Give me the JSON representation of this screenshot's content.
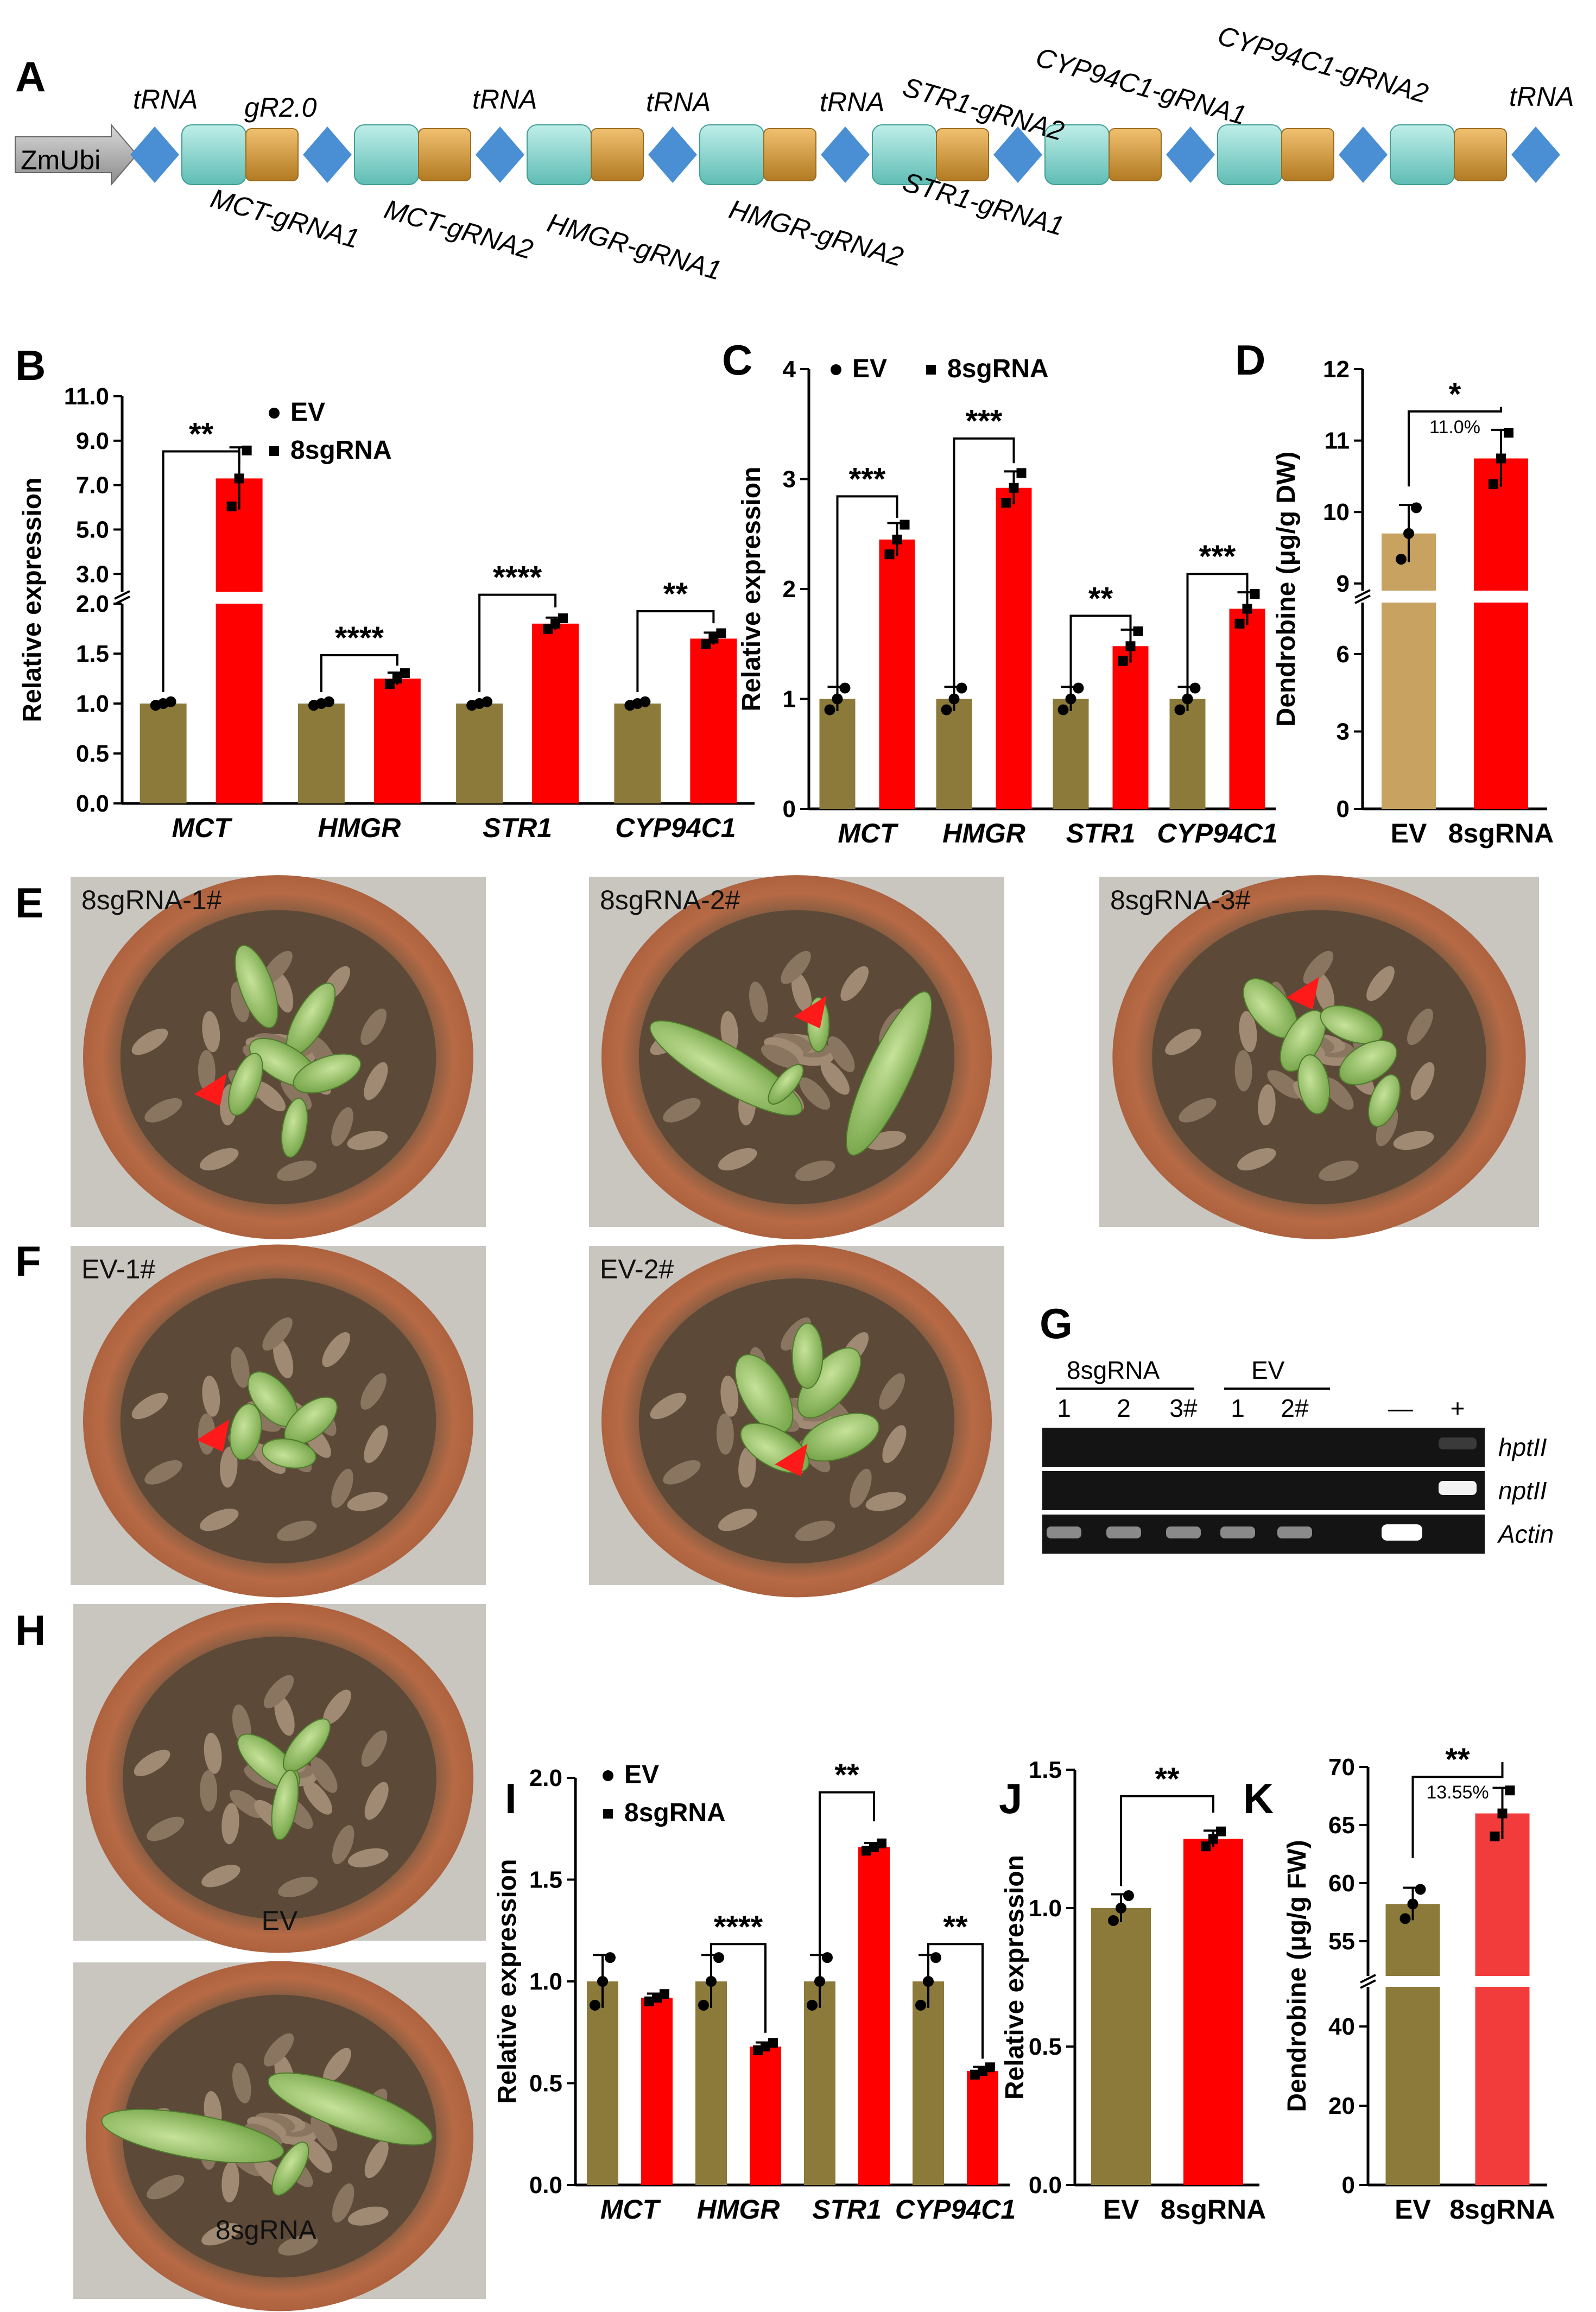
{
  "panel_labels": {
    "A": "A",
    "B": "B",
    "C": "C",
    "D": "D",
    "E": "E",
    "F": "F",
    "G": "G",
    "H": "H",
    "I": "I",
    "J": "J",
    "K": "K"
  },
  "colors": {
    "ev": "#8c7a3a",
    "ev_light": "#c8a260",
    "sgrna": "#ff0000",
    "sgrna_light": "#f23c3c",
    "trna": "#4a8fd4",
    "grna": "#7fd0c8",
    "scaffold": "#d39a36"
  },
  "construct": {
    "promoter": "ZmUbi",
    "top_labels": [
      "tRNA",
      "gR2.0",
      "tRNA",
      "tRNA",
      "tRNA",
      "STR1-gRNA2",
      "CYP94C1-gRNA1",
      "CYP94C1-gRNA2",
      "tRNA"
    ],
    "bottom_labels": [
      "MCT-gRNA1",
      "MCT-gRNA2",
      "HMGR-gRNA1",
      "HMGR-gRNA2",
      "STR1-gRNA1"
    ]
  },
  "legend": {
    "ev": "EV",
    "sgrna": "8sgRNA"
  },
  "photos": {
    "E": [
      "8sgRNA-1#",
      "8sgRNA-2#",
      "8sgRNA-3#"
    ],
    "F": [
      "EV-1#",
      "EV-2#"
    ],
    "H": [
      "EV",
      "8sgRNA"
    ]
  },
  "gel": {
    "group1": "8sgRNA",
    "group2": "EV",
    "lanes": [
      "1",
      "2",
      "3#",
      "1",
      "2#",
      "—",
      "+"
    ],
    "rows": [
      "hptII",
      "nptII",
      "Actin"
    ]
  },
  "chart_data": [
    {
      "panel": "B",
      "type": "bar",
      "ylabel": "Relative expression",
      "broken_axis": true,
      "lower_ticks": [
        "0.0",
        "0.5",
        "1.0",
        "1.5",
        "2.0"
      ],
      "upper_ticks": [
        "3.0",
        "5.0",
        "7.0",
        "9.0",
        "11.0"
      ],
      "categories": [
        "MCT",
        "HMGR",
        "STR1",
        "CYP94C1"
      ],
      "series": [
        {
          "name": "EV",
          "values": [
            1.0,
            1.0,
            1.0,
            1.0
          ]
        },
        {
          "name": "8sgRNA",
          "values": [
            7.3,
            1.25,
            1.8,
            1.65
          ]
        }
      ],
      "significance": [
        "**",
        "****",
        "****",
        "**"
      ]
    },
    {
      "panel": "C",
      "type": "bar",
      "ylabel": "Relative expression",
      "ylim": [
        0,
        4
      ],
      "ticks": [
        "0",
        "1",
        "2",
        "3",
        "4"
      ],
      "categories": [
        "MCT",
        "HMGR",
        "STR1",
        "CYP94C1"
      ],
      "series": [
        {
          "name": "EV",
          "values": [
            1.0,
            1.0,
            1.0,
            1.0
          ]
        },
        {
          "name": "8sgRNA",
          "values": [
            2.45,
            2.92,
            1.48,
            1.82
          ]
        }
      ],
      "significance": [
        "***",
        "***",
        "**",
        "***"
      ]
    },
    {
      "panel": "D",
      "type": "bar",
      "ylabel": "Dendrobine (μg/g DW)",
      "broken_axis": true,
      "lower_ticks": [
        "0",
        "3",
        "6"
      ],
      "upper_ticks": [
        "9",
        "10",
        "11",
        "12"
      ],
      "categories": [
        "EV",
        "8sgRNA"
      ],
      "values": [
        9.7,
        10.75
      ],
      "significance": "*",
      "percent": "11.0%"
    },
    {
      "panel": "I",
      "type": "bar",
      "ylabel": "Relative expression",
      "ylim": [
        0,
        2
      ],
      "ticks": [
        "0.0",
        "0.5",
        "1.0",
        "1.5",
        "2.0"
      ],
      "categories": [
        "MCT",
        "HMGR",
        "STR1",
        "CYP94C1"
      ],
      "series": [
        {
          "name": "EV",
          "values": [
            1.0,
            1.0,
            1.0,
            1.0
          ]
        },
        {
          "name": "8sgRNA",
          "values": [
            0.92,
            0.68,
            1.66,
            0.56
          ]
        }
      ],
      "significance": [
        "",
        "****",
        "**",
        "**"
      ]
    },
    {
      "panel": "J",
      "type": "bar",
      "ylabel": "Relative expression",
      "ylim": [
        0,
        1.5
      ],
      "ticks": [
        "0.0",
        "0.5",
        "1.0",
        "1.5"
      ],
      "categories": [
        "EV",
        "8sgRNA"
      ],
      "values": [
        1.0,
        1.25
      ],
      "significance": "**"
    },
    {
      "panel": "K",
      "type": "bar",
      "ylabel": "Dendrobine (μg/g FW)",
      "broken_axis": true,
      "lower_ticks": [
        "0",
        "20",
        "40"
      ],
      "upper_ticks": [
        "55",
        "60",
        "65",
        "70"
      ],
      "categories": [
        "EV",
        "8sgRNA"
      ],
      "values": [
        58.2,
        66.0
      ],
      "significance": "**",
      "percent": "13.55%"
    }
  ]
}
